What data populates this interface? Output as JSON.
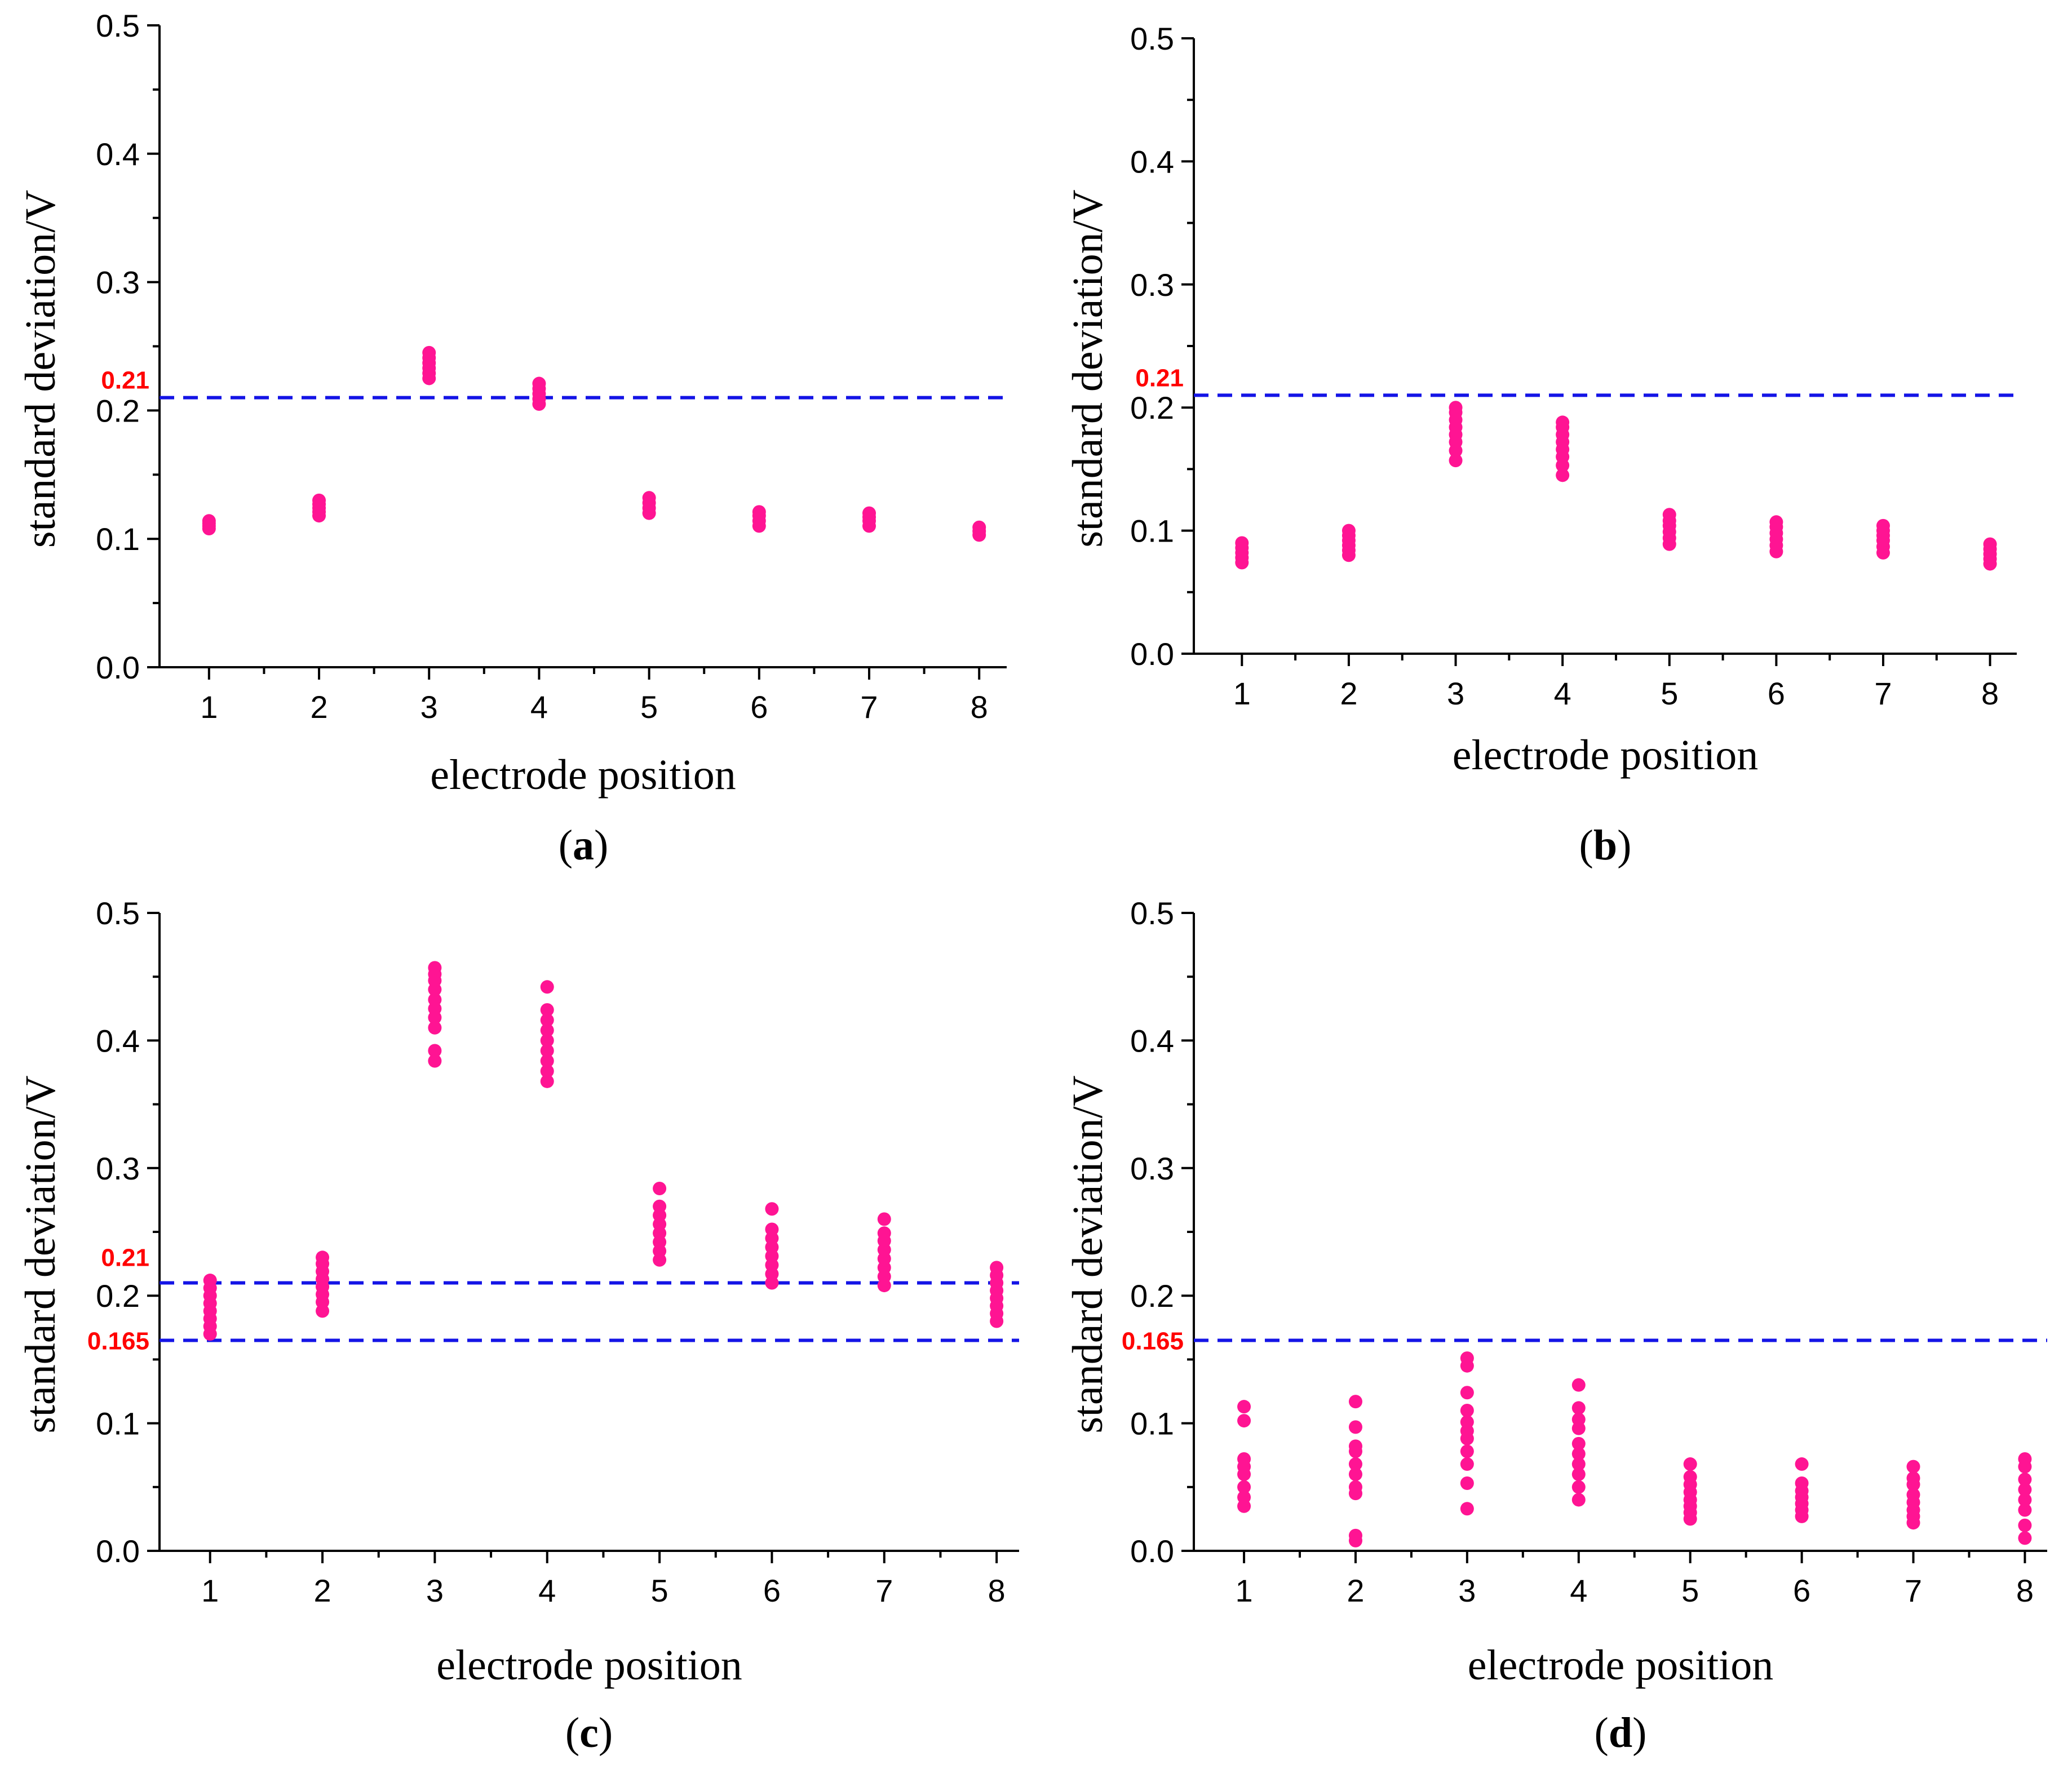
{
  "figure": {
    "marker_color": "#FF1493",
    "threshold_line_color": "#1414E6",
    "threshold_label_color": "#FF0000"
  },
  "chart_data": [
    {
      "type": "scatter",
      "panel": "a",
      "caption": "a",
      "xlabel": "electrode position",
      "ylabel": "standard deviation/V",
      "xlim": [
        0.55,
        8.25
      ],
      "ylim": [
        0,
        0.5
      ],
      "xticks": [
        1,
        2,
        3,
        4,
        5,
        6,
        7,
        8
      ],
      "yticks": [
        "0.0",
        "0.1",
        "0.2",
        "0.3",
        "0.4",
        "0.5"
      ],
      "thresholds": [
        {
          "value": 0.21,
          "label": "0.21"
        }
      ],
      "series": [
        {
          "x": 1,
          "values": [
            0.108,
            0.11,
            0.112,
            0.114
          ]
        },
        {
          "x": 2,
          "values": [
            0.118,
            0.121,
            0.124,
            0.127,
            0.13
          ]
        },
        {
          "x": 3,
          "values": [
            0.225,
            0.229,
            0.233,
            0.237,
            0.241,
            0.245
          ]
        },
        {
          "x": 4,
          "values": [
            0.205,
            0.209,
            0.213,
            0.217,
            0.221
          ]
        },
        {
          "x": 5,
          "values": [
            0.12,
            0.124,
            0.128,
            0.132
          ]
        },
        {
          "x": 6,
          "values": [
            0.11,
            0.114,
            0.118,
            0.121
          ]
        },
        {
          "x": 7,
          "values": [
            0.11,
            0.114,
            0.117,
            0.12
          ]
        },
        {
          "x": 8,
          "values": [
            0.103,
            0.106,
            0.109
          ]
        }
      ]
    },
    {
      "type": "scatter",
      "panel": "b",
      "caption": "b",
      "xlabel": "electrode position",
      "ylabel": "standard deviation/V",
      "xlim": [
        0.55,
        8.25
      ],
      "ylim": [
        0,
        0.5
      ],
      "xticks": [
        1,
        2,
        3,
        4,
        5,
        6,
        7,
        8
      ],
      "yticks": [
        "0.0",
        "0.1",
        "0.2",
        "0.3",
        "0.4",
        "0.5"
      ],
      "thresholds": [
        {
          "value": 0.21,
          "label": "0.21"
        }
      ],
      "series": [
        {
          "x": 1,
          "values": [
            0.074,
            0.078,
            0.082,
            0.086,
            0.09
          ]
        },
        {
          "x": 2,
          "values": [
            0.08,
            0.084,
            0.088,
            0.092,
            0.096,
            0.1
          ]
        },
        {
          "x": 3,
          "values": [
            0.157,
            0.165,
            0.172,
            0.178,
            0.184,
            0.19,
            0.196,
            0.2
          ]
        },
        {
          "x": 4,
          "values": [
            0.145,
            0.153,
            0.16,
            0.166,
            0.172,
            0.178,
            0.184,
            0.188
          ]
        },
        {
          "x": 5,
          "values": [
            0.089,
            0.094,
            0.099,
            0.104,
            0.108,
            0.113
          ]
        },
        {
          "x": 6,
          "values": [
            0.083,
            0.088,
            0.093,
            0.098,
            0.103,
            0.107
          ]
        },
        {
          "x": 7,
          "values": [
            0.082,
            0.087,
            0.092,
            0.096,
            0.1,
            0.104
          ]
        },
        {
          "x": 8,
          "values": [
            0.073,
            0.077,
            0.081,
            0.085,
            0.089
          ]
        }
      ]
    },
    {
      "type": "scatter",
      "panel": "c",
      "caption": "c",
      "xlabel": "electrode position",
      "ylabel": "standard deviation/V",
      "xlim": [
        0.55,
        8.2
      ],
      "ylim": [
        0,
        0.5
      ],
      "xticks": [
        1,
        2,
        3,
        4,
        5,
        6,
        7,
        8
      ],
      "yticks": [
        "0.0",
        "0.1",
        "0.2",
        "0.3",
        "0.4",
        "0.5"
      ],
      "thresholds": [
        {
          "value": 0.21,
          "label": "0.21"
        },
        {
          "value": 0.165,
          "label": "0.165"
        }
      ],
      "series": [
        {
          "x": 1,
          "values": [
            0.17,
            0.176,
            0.182,
            0.188,
            0.194,
            0.2,
            0.206,
            0.212
          ]
        },
        {
          "x": 2,
          "values": [
            0.188,
            0.195,
            0.201,
            0.207,
            0.213,
            0.219,
            0.225,
            0.23
          ]
        },
        {
          "x": 3,
          "values": [
            0.384,
            0.392,
            0.41,
            0.418,
            0.425,
            0.432,
            0.44,
            0.447,
            0.452,
            0.457
          ]
        },
        {
          "x": 4,
          "values": [
            0.368,
            0.376,
            0.384,
            0.392,
            0.4,
            0.408,
            0.416,
            0.424,
            0.442
          ]
        },
        {
          "x": 5,
          "values": [
            0.228,
            0.235,
            0.242,
            0.249,
            0.256,
            0.263,
            0.27,
            0.284
          ]
        },
        {
          "x": 6,
          "values": [
            0.21,
            0.217,
            0.224,
            0.231,
            0.238,
            0.245,
            0.252,
            0.268
          ]
        },
        {
          "x": 7,
          "values": [
            0.208,
            0.215,
            0.222,
            0.229,
            0.236,
            0.243,
            0.249,
            0.26
          ]
        },
        {
          "x": 8,
          "values": [
            0.18,
            0.186,
            0.192,
            0.198,
            0.204,
            0.21,
            0.216,
            0.222
          ]
        }
      ]
    },
    {
      "type": "scatter",
      "panel": "d",
      "caption": "d",
      "xlabel": "electrode position",
      "ylabel": "standard deviation/V",
      "xlim": [
        0.55,
        8.2
      ],
      "ylim": [
        0,
        0.5
      ],
      "xticks": [
        1,
        2,
        3,
        4,
        5,
        6,
        7,
        8
      ],
      "yticks": [
        "0.0",
        "0.1",
        "0.2",
        "0.3",
        "0.4",
        "0.5"
      ],
      "thresholds": [
        {
          "value": 0.165,
          "label": "0.165"
        }
      ],
      "series": [
        {
          "x": 1,
          "values": [
            0.035,
            0.042,
            0.05,
            0.06,
            0.066,
            0.072,
            0.102,
            0.113
          ]
        },
        {
          "x": 2,
          "values": [
            0.008,
            0.012,
            0.045,
            0.05,
            0.06,
            0.068,
            0.078,
            0.082,
            0.097,
            0.117
          ]
        },
        {
          "x": 3,
          "values": [
            0.033,
            0.053,
            0.068,
            0.078,
            0.088,
            0.094,
            0.101,
            0.11,
            0.124,
            0.145,
            0.151
          ]
        },
        {
          "x": 4,
          "values": [
            0.04,
            0.05,
            0.06,
            0.068,
            0.076,
            0.084,
            0.096,
            0.103,
            0.112,
            0.13
          ]
        },
        {
          "x": 5,
          "values": [
            0.025,
            0.03,
            0.035,
            0.04,
            0.046,
            0.052,
            0.058,
            0.068
          ]
        },
        {
          "x": 6,
          "values": [
            0.027,
            0.032,
            0.037,
            0.042,
            0.047,
            0.053,
            0.068
          ]
        },
        {
          "x": 7,
          "values": [
            0.022,
            0.027,
            0.032,
            0.038,
            0.044,
            0.052,
            0.057,
            0.066
          ]
        },
        {
          "x": 8,
          "values": [
            0.01,
            0.02,
            0.032,
            0.04,
            0.048,
            0.056,
            0.066,
            0.072
          ]
        }
      ]
    }
  ]
}
